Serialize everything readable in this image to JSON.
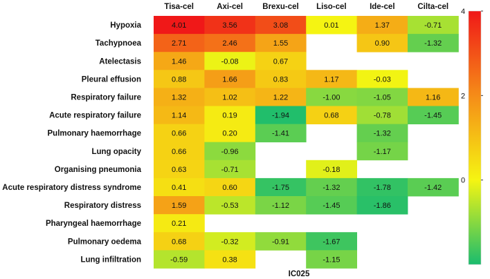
{
  "chart_data": {
    "type": "heatmap",
    "title": "",
    "xlabel": "IC025",
    "ylabel": "",
    "columns": [
      "Tisa-cel",
      "Axi-cel",
      "Brexu-cel",
      "Liso-cel",
      "Ide-cel",
      "Cilta-cel"
    ],
    "rows": [
      "Hypoxia",
      "Tachypnoea",
      "Atelectasis",
      "Pleural effusion",
      "Respiratory failure",
      "Acute respiratory failure",
      "Pulmonary haemorrhage",
      "Lung opacity",
      "Organising pneumonia",
      "Acute respiratory distress syndrome",
      "Respiratory distress",
      "Pharyngeal haemorrhage",
      "Pulmonary oedema",
      "Lung infiltration"
    ],
    "values": [
      [
        4.01,
        3.56,
        3.08,
        0.01,
        1.37,
        -0.71
      ],
      [
        2.71,
        2.46,
        1.55,
        null,
        0.9,
        -1.32
      ],
      [
        1.46,
        -0.08,
        0.67,
        null,
        null,
        null
      ],
      [
        0.88,
        1.66,
        0.83,
        1.17,
        -0.03,
        null
      ],
      [
        1.32,
        1.02,
        1.22,
        -1.0,
        -1.05,
        1.16
      ],
      [
        1.14,
        0.19,
        -1.94,
        0.68,
        -0.78,
        -1.45
      ],
      [
        0.66,
        0.2,
        -1.41,
        null,
        -1.32,
        null
      ],
      [
        0.66,
        -0.96,
        null,
        null,
        -1.17,
        null
      ],
      [
        0.63,
        -0.71,
        null,
        -0.18,
        null,
        null
      ],
      [
        0.41,
        0.6,
        -1.75,
        -1.32,
        -1.78,
        -1.42
      ],
      [
        1.59,
        -0.53,
        -1.12,
        -1.45,
        -1.86,
        null
      ],
      [
        0.21,
        null,
        null,
        null,
        null,
        null
      ],
      [
        0.68,
        -0.32,
        -0.91,
        -1.67,
        null,
        null
      ],
      [
        -0.59,
        0.38,
        null,
        -1.15,
        null,
        null
      ]
    ],
    "colorbar": {
      "min": -2,
      "max": 4,
      "ticks": [
        0,
        2,
        4
      ],
      "tick_labels": [
        "0",
        "2",
        "4"
      ],
      "stops": [
        {
          "value": -2,
          "color": "#1abc6e"
        },
        {
          "value": 0,
          "color": "#f5f512"
        },
        {
          "value": 2,
          "color": "#f58c18"
        },
        {
          "value": 4,
          "color": "#f01818"
        }
      ]
    }
  }
}
